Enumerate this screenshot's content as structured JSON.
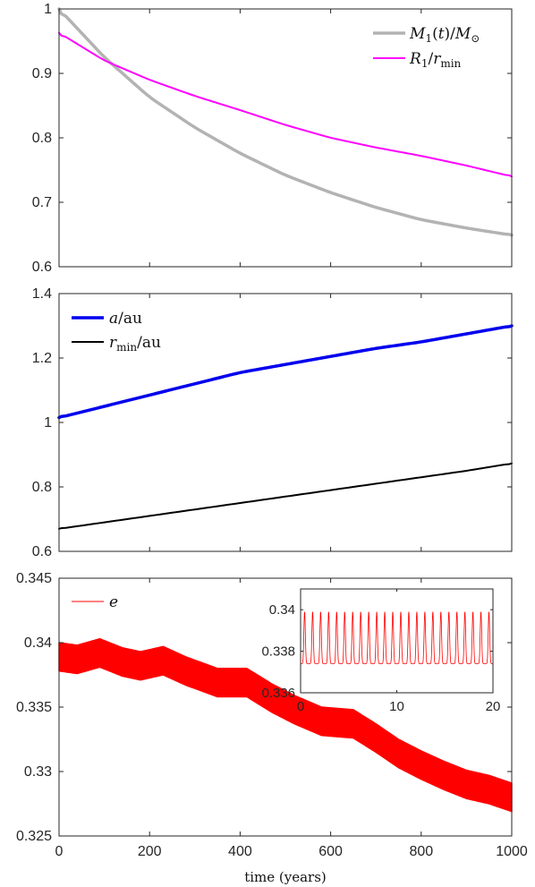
{
  "figure": {
    "xlabel": "time (years)"
  },
  "chart_data": [
    {
      "type": "line",
      "xlim": [
        0,
        1000
      ],
      "ylim": [
        0.6,
        1
      ],
      "x_ticks": [
        0,
        200,
        400,
        600,
        800,
        1000
      ],
      "y_ticks": [
        0.6,
        0.7,
        0.8,
        0.9,
        1
      ],
      "y_tick_labels": [
        "0.6",
        "0.7",
        "0.8",
        "0.9",
        "1"
      ],
      "show_x_tick_labels": false,
      "legend_position": "top-right",
      "series": [
        {
          "name": "M1(t)/M⊙",
          "color": "#b3b3b3",
          "width": 3.5,
          "x": [
            0,
            100,
            200,
            300,
            400,
            500,
            600,
            700,
            800,
            900,
            1000
          ],
          "y": [
            1.0,
            0.925,
            0.863,
            0.816,
            0.776,
            0.742,
            0.715,
            0.692,
            0.673,
            0.66,
            0.649
          ]
        },
        {
          "name": "R1/rmin",
          "color": "#ff00ff",
          "width": 2,
          "x": [
            0,
            100,
            200,
            300,
            400,
            500,
            600,
            700,
            800,
            900,
            1000
          ],
          "y": [
            0.963,
            0.92,
            0.89,
            0.865,
            0.843,
            0.82,
            0.8,
            0.785,
            0.772,
            0.757,
            0.74
          ]
        }
      ]
    },
    {
      "type": "line",
      "xlim": [
        0,
        1000
      ],
      "ylim": [
        0.6,
        1.4
      ],
      "x_ticks": [
        0,
        200,
        400,
        600,
        800,
        1000
      ],
      "y_ticks": [
        0.6,
        0.8,
        1.0,
        1.2,
        1.4
      ],
      "y_tick_labels": [
        "0.6",
        "0.8",
        "1",
        "1.2",
        "1.4"
      ],
      "show_x_tick_labels": false,
      "legend_position": "top-left",
      "series": [
        {
          "name": "a/au",
          "color": "#0000ee",
          "width": 3.5,
          "x": [
            0,
            100,
            200,
            300,
            400,
            500,
            600,
            700,
            800,
            900,
            1000
          ],
          "y": [
            1.015,
            1.05,
            1.085,
            1.12,
            1.155,
            1.18,
            1.205,
            1.23,
            1.25,
            1.275,
            1.3
          ]
        },
        {
          "name": "rmin/au",
          "color": "#000000",
          "width": 2,
          "x": [
            0,
            100,
            200,
            300,
            400,
            500,
            600,
            700,
            800,
            900,
            1000
          ],
          "y": [
            0.67,
            0.69,
            0.71,
            0.73,
            0.75,
            0.77,
            0.79,
            0.81,
            0.83,
            0.85,
            0.873
          ]
        }
      ]
    },
    {
      "type": "line",
      "xlim": [
        0,
        1000
      ],
      "ylim": [
        0.325,
        0.345
      ],
      "x_ticks": [
        0,
        200,
        400,
        600,
        800,
        1000
      ],
      "x_tick_labels": [
        "0",
        "200",
        "400",
        "600",
        "800",
        "1000"
      ],
      "y_ticks": [
        0.325,
        0.33,
        0.335,
        0.34,
        0.345
      ],
      "y_tick_labels": [
        "0.325",
        "0.33",
        "0.335",
        "0.34",
        "0.345"
      ],
      "show_x_tick_labels": true,
      "legend_position": "top-left",
      "series": [
        {
          "name": "e",
          "color": "#ff0000",
          "band": true,
          "x": [
            0,
            40,
            90,
            140,
            180,
            230,
            280,
            350,
            415,
            470,
            520,
            580,
            650,
            700,
            750,
            800,
            850,
            900,
            950,
            1000
          ],
          "y_center": [
            0.3389,
            0.3387,
            0.3392,
            0.3385,
            0.3382,
            0.3386,
            0.3378,
            0.3369,
            0.3369,
            0.3357,
            0.3348,
            0.3339,
            0.3337,
            0.3326,
            0.3314,
            0.3305,
            0.3297,
            0.329,
            0.3286,
            0.328
          ],
          "amplitude": 0.0011
        }
      ],
      "inset": {
        "type": "line",
        "xlim": [
          0,
          20
        ],
        "ylim": [
          0.336,
          0.341
        ],
        "x_ticks": [
          0,
          10,
          20
        ],
        "x_tick_labels": [
          "0",
          "10",
          "20"
        ],
        "y_ticks": [
          0.336,
          0.338,
          0.34
        ],
        "y_tick_labels": [
          "0.336",
          "0.338",
          "0.34"
        ],
        "series": [
          {
            "name": "e",
            "color": "#ff0000",
            "oscillations": 24,
            "min": 0.3374,
            "max": 0.3399
          }
        ]
      }
    }
  ]
}
